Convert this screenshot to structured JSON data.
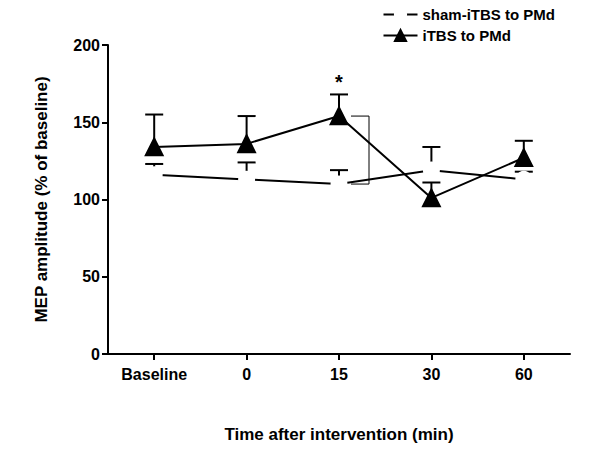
{
  "chart_data": {
    "type": "line",
    "x_label": "Time after intervention (min)",
    "y_label": "MEP amplitude (% of baseline)",
    "categories": [
      "Baseline",
      "0",
      "15",
      "30",
      "60"
    ],
    "series": [
      {
        "name": "sham-iTBS to PMd",
        "color": "#000000",
        "marker": "emptyCircle",
        "line_style": "solid",
        "values": [
          116,
          113,
          110,
          119,
          113
        ],
        "errors": [
          7,
          11,
          9,
          15,
          5
        ]
      },
      {
        "name": "iTBS to PMd",
        "color": "#000000",
        "marker": "triangle",
        "line_style": "solid",
        "values": [
          134,
          136,
          154,
          101,
          127
        ],
        "errors": [
          21,
          18,
          14,
          10,
          11
        ]
      }
    ],
    "ylim": [
      0,
      200
    ],
    "yticks": [
      0,
      50,
      100,
      150,
      200
    ],
    "grid": false,
    "legend": "upper right",
    "annotations": [
      {
        "text": "*",
        "category": "15"
      }
    ]
  }
}
